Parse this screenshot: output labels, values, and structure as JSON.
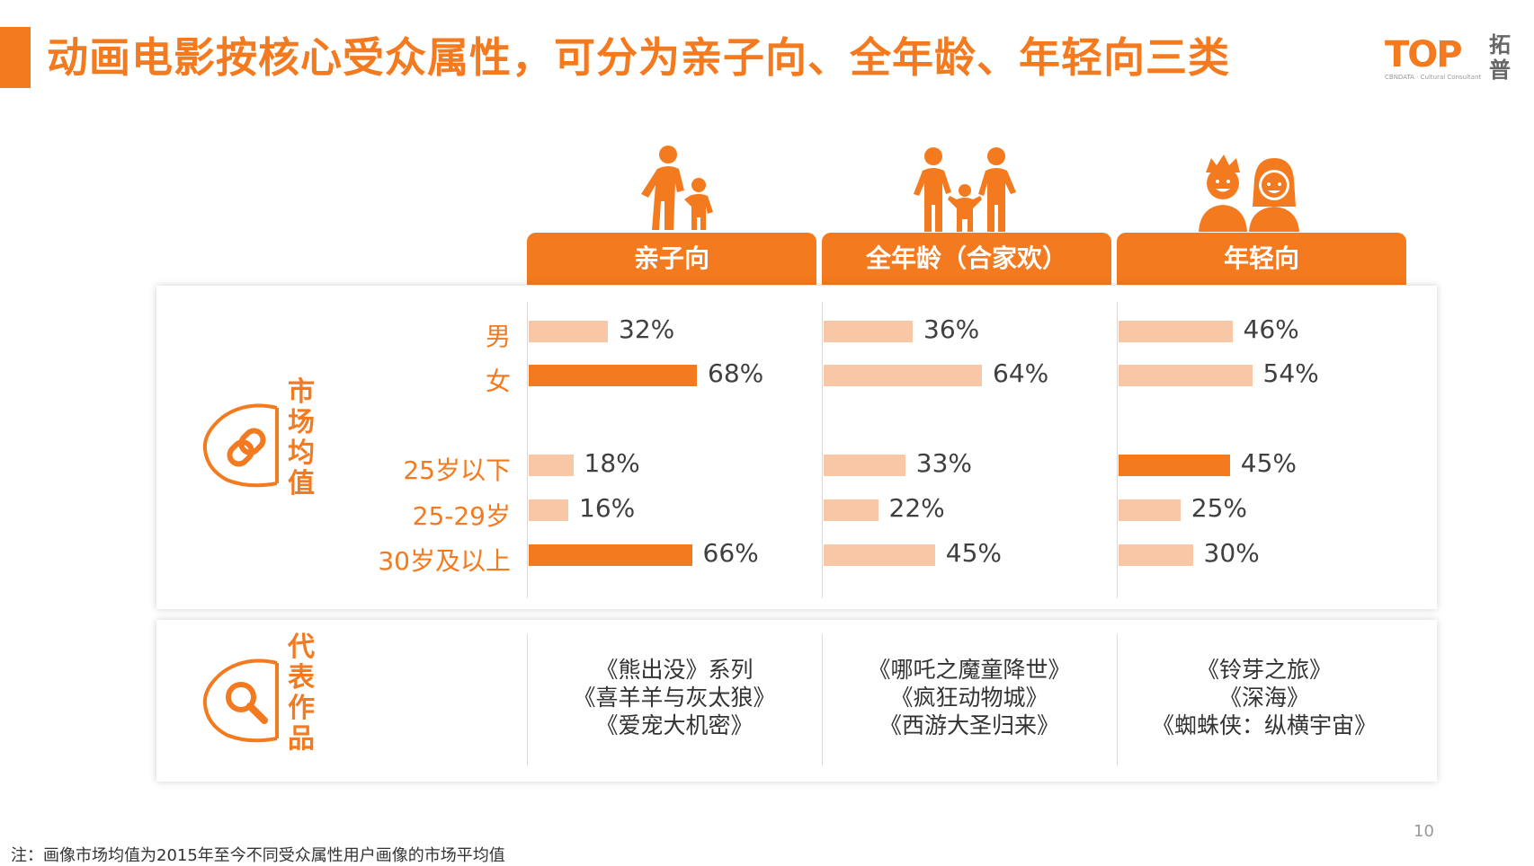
{
  "title": "动画电影按核心受众属性，可分为亲子向、全年龄、年轻向三类",
  "logo": {
    "text": "TOP",
    "subtitle": "CBNDATA · Cultural Consultant",
    "cn": "拓普"
  },
  "colors": {
    "accent": "#f47a20",
    "light": "#f7c7a6"
  },
  "row_labels": [
    "男",
    "女",
    "25岁以下",
    "25-29岁",
    "30岁及以上"
  ],
  "market_label": "市场均值",
  "works_label": "代表作品",
  "icons": {
    "market": "link-icon",
    "works": "magnifier-icon",
    "headers": [
      "parent-child-icon",
      "family-icon",
      "young-couple-icon"
    ]
  },
  "chart_data": {
    "type": "bar",
    "orientation": "horizontal",
    "categories": [
      "男",
      "女",
      "25岁以下",
      "25-29岁",
      "30岁及以上"
    ],
    "series": [
      {
        "name": "亲子向",
        "values": [
          32,
          68,
          18,
          16,
          66
        ],
        "display": [
          "32%",
          "68%",
          "18%",
          "16%",
          "66%"
        ],
        "highlight": [
          false,
          true,
          false,
          false,
          true
        ]
      },
      {
        "name": "全年龄（合家欢）",
        "values": [
          36,
          64,
          33,
          22,
          45
        ],
        "display": [
          "36%",
          "64%",
          "33%",
          "22%",
          "45%"
        ],
        "highlight": [
          false,
          false,
          false,
          false,
          false
        ]
      },
      {
        "name": "年轻向",
        "values": [
          46,
          54,
          45,
          25,
          30
        ],
        "display": [
          "46%",
          "54%",
          "45%",
          "25%",
          "30%"
        ],
        "highlight": [
          false,
          false,
          true,
          false,
          false
        ]
      }
    ],
    "unit": "%"
  },
  "works": [
    [
      "《熊出没》系列",
      "《喜羊羊与灰太狼》",
      "《爱宠大机密》"
    ],
    [
      "《哪吒之魔童降世》",
      "《疯狂动物城》",
      "《西游大圣归来》"
    ],
    [
      "《铃芽之旅》",
      "《深海》",
      "《蜘蛛侠：纵横宇宙》"
    ]
  ],
  "footnote": "注：画像市场均值为2015年至今不同受众属性用户画像的市场平均值",
  "page_number": "10"
}
